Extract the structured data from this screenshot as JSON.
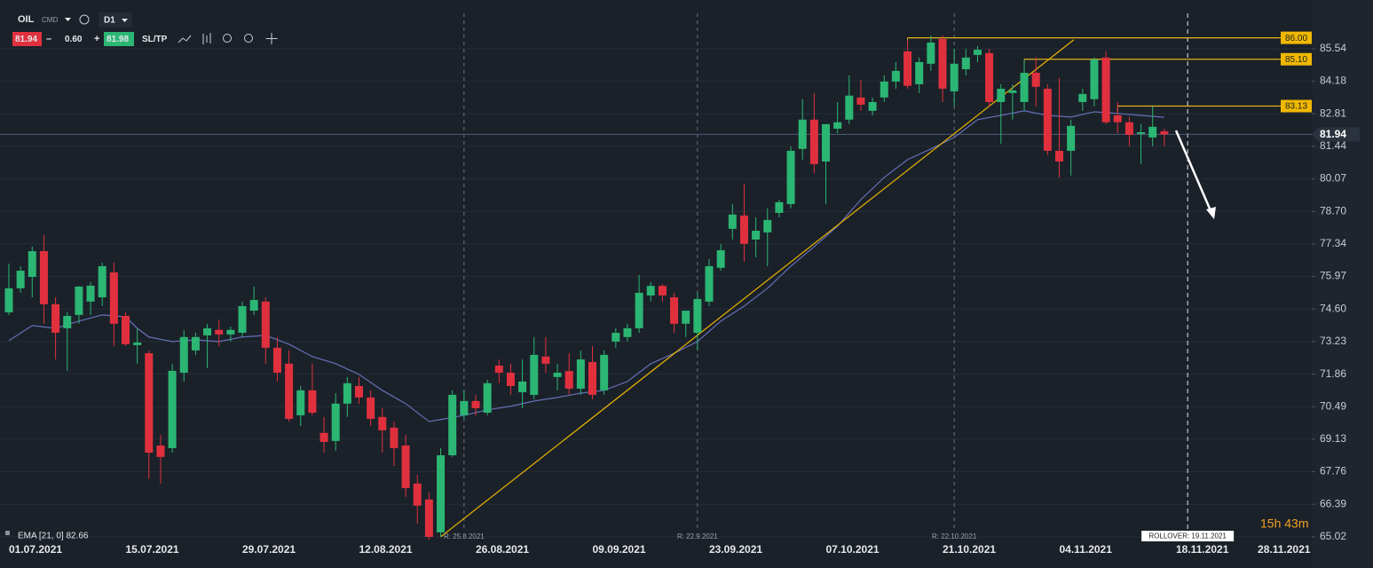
{
  "toolbar": {
    "symbol": "OIL",
    "market": "CMD",
    "interval": "D1",
    "sell": "81.94",
    "spread": "0.60",
    "buy": "81.98",
    "sltp": "SL/TP"
  },
  "countdown": "15h 43m",
  "chart_data": {
    "type": "candlestick",
    "categories": [
      "01.07.2021",
      null,
      null,
      null,
      null,
      null,
      null,
      null,
      null,
      null,
      "15.07.2021",
      null,
      null,
      null,
      null,
      null,
      null,
      null,
      null,
      null,
      "29.07.2021",
      null,
      null,
      null,
      null,
      null,
      null,
      null,
      null,
      null,
      "12.08.2021",
      null,
      null,
      null,
      null,
      null,
      null,
      null,
      null,
      null,
      "26.08.2021",
      null,
      null,
      null,
      null,
      null,
      null,
      null,
      null,
      null,
      "09.09.2021",
      null,
      null,
      null,
      null,
      null,
      null,
      null,
      null,
      null,
      "23.09.2021",
      null,
      null,
      null,
      null,
      null,
      null,
      null,
      null,
      null,
      "07.10.2021",
      null,
      null,
      null,
      null,
      null,
      null,
      null,
      null,
      null,
      "21.10.2021",
      null,
      null,
      null,
      null,
      null,
      null,
      null,
      null,
      null,
      "04.11.2021",
      null,
      null,
      null,
      null,
      null,
      null,
      null,
      null,
      null,
      "18.11.2021",
      null,
      null,
      null,
      null,
      null,
      null,
      "28.11.2021"
    ],
    "open": [
      74.46,
      75.47,
      75.95,
      77.03,
      74.8,
      73.79,
      74.35,
      74.91,
      75.09,
      76.14,
      74.31,
      73.08,
      72.74,
      68.86,
      68.75,
      71.92,
      72.86,
      73.49,
      73.72,
      73.53,
      73.6,
      74.53,
      74.91,
      72.97,
      72.3,
      70.13,
      71.18,
      69.39,
      69.05,
      70.62,
      71.36,
      70.88,
      70.06,
      69.61,
      68.86,
      67.26,
      66.59,
      65.21,
      68.45,
      70.13,
      70.73,
      70.24,
      72.22,
      71.92,
      71.1,
      70.99,
      72.6,
      71.74,
      71.99,
      71.25,
      72.37,
      71.18,
      73.23,
      73.42,
      73.79,
      75.17,
      75.57,
      75.09,
      73.98,
      73.6,
      74.91,
      76.33,
      77.97,
      78.53,
      77.52,
      77.82,
      78.64,
      79.01,
      81.33,
      82.56,
      80.8,
      82.18,
      82.56,
      83.49,
      82.93,
      83.49,
      84.16,
      85.43,
      84.05,
      84.91,
      85.95,
      83.75,
      84.68,
      85.28,
      85.36,
      83.3,
      83.68,
      83.3,
      84.53,
      83.86,
      81.25,
      81.25,
      83.3,
      83.42,
      85.17,
      82.74,
      82.45,
      81.96,
      81.81,
      82.07,
      null,
      null,
      null,
      null,
      null,
      null,
      null,
      null
    ],
    "high": [
      76.51,
      76.4,
      77.22,
      77.71,
      75.09,
      74.46,
      75.57,
      75.73,
      76.55,
      76.55,
      74.46,
      73.79,
      72.86,
      69.31,
      72.3,
      73.72,
      73.6,
      73.98,
      74.16,
      73.86,
      74.91,
      75.54,
      75.09,
      73.42,
      72.86,
      71.36,
      72.3,
      70.06,
      71.06,
      71.74,
      71.74,
      71.18,
      70.43,
      69.87,
      69.31,
      67.63,
      66.89,
      68.75,
      71.18,
      71.18,
      70.99,
      71.62,
      72.48,
      72.3,
      72.48,
      73.42,
      73.42,
      72.3,
      72.74,
      72.86,
      73.04,
      72.86,
      73.79,
      73.98,
      76.03,
      75.73,
      75.65,
      75.28,
      74.53,
      75.28,
      76.7,
      77.34,
      79.01,
      79.87,
      78.45,
      78.83,
      79.19,
      81.44,
      83.42,
      83.68,
      82.37,
      83.3,
      84.42,
      84.23,
      83.49,
      84.42,
      84.98,
      85.92,
      85.17,
      86.1,
      86.1,
      85.54,
      85.54,
      85.65,
      85.54,
      84.05,
      84.05,
      85.06,
      85.17,
      84.05,
      84.31,
      82.56,
      83.86,
      85.17,
      85.43,
      83.3,
      82.67,
      82.37,
      83.12,
      82.18,
      null,
      null,
      null,
      null,
      null,
      null,
      null,
      null
    ],
    "low": [
      74.35,
      75.28,
      75.09,
      73.98,
      72.48,
      72.0,
      73.98,
      74.35,
      74.72,
      73.04,
      73.04,
      72.3,
      67.45,
      67.26,
      68.56,
      71.55,
      72.67,
      72.12,
      73.04,
      73.23,
      73.42,
      74.35,
      72.3,
      71.55,
      69.87,
      69.68,
      70.13,
      68.56,
      68.64,
      70.06,
      70.62,
      69.68,
      68.56,
      68.0,
      66.7,
      65.58,
      64.9,
      65.02,
      68.38,
      69.98,
      70.13,
      70.13,
      71.48,
      70.99,
      70.43,
      70.8,
      71.92,
      71.18,
      70.99,
      70.99,
      70.8,
      70.99,
      72.97,
      73.23,
      73.6,
      74.91,
      74.91,
      73.6,
      73.42,
      72.86,
      74.72,
      76.21,
      77.52,
      76.59,
      76.77,
      76.4,
      78.45,
      78.83,
      80.88,
      80.32,
      79.01,
      81.99,
      82.37,
      82.93,
      82.74,
      83.3,
      83.86,
      83.86,
      83.68,
      84.61,
      83.3,
      83.12,
      84.42,
      84.98,
      83.12,
      81.55,
      82.56,
      82.93,
      83.12,
      81.07,
      80.13,
      80.21,
      82.93,
      83.12,
      82.37,
      82.0,
      81.44,
      80.69,
      81.44,
      81.44,
      null,
      null,
      null,
      null,
      null,
      null,
      null,
      null
    ],
    "close": [
      75.47,
      76.21,
      77.03,
      74.8,
      73.6,
      74.31,
      75.54,
      75.58,
      76.4,
      73.98,
      73.12,
      73.19,
      68.56,
      68.38,
      72.0,
      73.42,
      73.42,
      73.79,
      73.53,
      73.72,
      74.72,
      74.98,
      72.97,
      71.92,
      69.98,
      71.18,
      70.24,
      69.01,
      70.62,
      71.48,
      70.88,
      69.98,
      69.5,
      68.75,
      67.07,
      66.33,
      65.02,
      68.45,
      70.99,
      70.73,
      70.43,
      71.48,
      71.92,
      71.36,
      71.55,
      72.67,
      72.3,
      71.92,
      71.25,
      72.48,
      70.99,
      72.67,
      73.6,
      73.79,
      75.28,
      75.57,
      75.17,
      73.98,
      74.53,
      75.02,
      76.4,
      77.07,
      78.57,
      77.34,
      77.89,
      78.34,
      79.09,
      81.25,
      82.56,
      80.69,
      82.37,
      82.45,
      83.57,
      83.19,
      83.3,
      84.16,
      84.61,
      83.98,
      84.98,
      85.8,
      83.86,
      84.91,
      85.17,
      85.5,
      83.3,
      83.86,
      83.79,
      84.53,
      83.94,
      81.25,
      80.8,
      82.3,
      83.64,
      85.09,
      82.45,
      82.45,
      81.92,
      82.03,
      82.26,
      81.94,
      null,
      null,
      null,
      null,
      null,
      null,
      null,
      null
    ],
    "colors": {
      "up": "#2bb673",
      "down": "#e0303e"
    },
    "ylim": [
      64.83,
      87.59
    ],
    "yticks": [
      65.02,
      66.39,
      67.76,
      69.13,
      70.49,
      71.86,
      73.23,
      {
        "value": 74.6,
        "label": "74.60"
      },
      75.97,
      77.34,
      {
        "value": 78.7,
        "label": "78.70"
      },
      80.07,
      81.44,
      82.81,
      84.18,
      85.54
    ],
    "grid": true,
    "ema": {
      "label": "EMA [21, 0] 82.66",
      "color": "#6470b8",
      "x": [
        0,
        2,
        4,
        6,
        8,
        10,
        11,
        12,
        14,
        16,
        18,
        20,
        22,
        24,
        26,
        28,
        30,
        32,
        34,
        36,
        37,
        39,
        41,
        43,
        45,
        47,
        49,
        51,
        53,
        55,
        57,
        59,
        61,
        63,
        65,
        67,
        69,
        71,
        73,
        75,
        77,
        79,
        81,
        83,
        85,
        87,
        89,
        91,
        93,
        95,
        97,
        99
      ],
      "values": [
        73.27,
        73.9,
        73.79,
        74.09,
        74.35,
        74.27,
        73.79,
        73.42,
        73.23,
        73.3,
        73.23,
        73.42,
        73.49,
        73.12,
        72.6,
        72.3,
        71.85,
        71.18,
        70.62,
        69.87,
        69.95,
        70.13,
        70.36,
        70.51,
        70.73,
        70.88,
        71.06,
        71.18,
        71.55,
        72.3,
        72.74,
        73.23,
        74.09,
        74.72,
        75.47,
        76.4,
        77.22,
        78.08,
        79.2,
        80.13,
        80.88,
        81.33,
        81.81,
        82.56,
        82.74,
        82.93,
        82.74,
        82.67,
        82.89,
        82.82,
        82.74,
        82.66
      ]
    },
    "levels": [
      {
        "value": 86,
        "label": "86.00",
        "x": 77
      },
      {
        "value": 85.1,
        "label": "85.10",
        "x": 87
      },
      {
        "value": 83.13,
        "x": 95
      }
    ],
    "level_color": "#e2b21c",
    "trendline": {
      "x": [
        37,
        91.25
      ],
      "y": [
        65.02,
        85.92
      ],
      "color": "#e8b400"
    },
    "current_price": {
      "value": 81.94,
      "color": "#4e5d7a"
    },
    "rollovers": [
      {
        "x": 39,
        "label": "R: 25.8.2021"
      },
      {
        "x": 59,
        "label": "R: 22.9.2021"
      },
      {
        "x": 81,
        "label": "R: 22.10.2021"
      }
    ],
    "next_rollover": {
      "x": 101,
      "label": "ROLLOVER: 19.11.2021"
    }
  }
}
